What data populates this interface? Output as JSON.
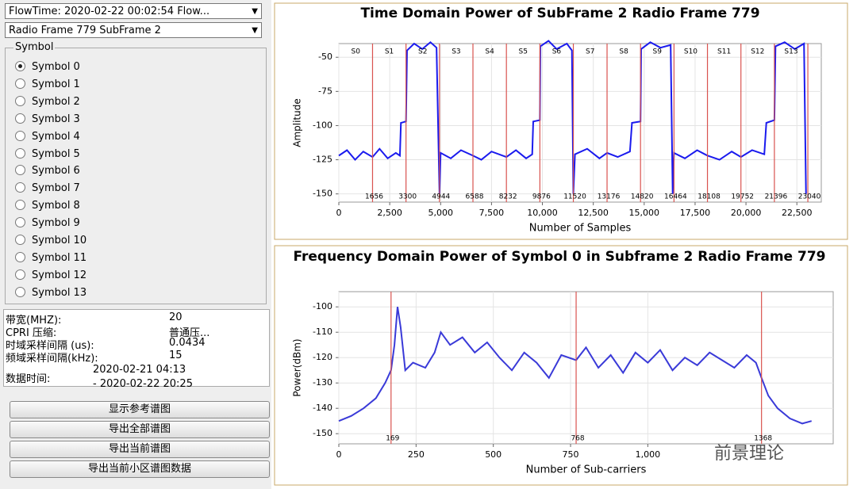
{
  "left_panel": {
    "dropdowns": [
      "FlowTime: 2020-02-22 00:02:54  Flow...",
      "Radio Frame 779 SubFrame 2"
    ],
    "symbol_group": {
      "title": "Symbol",
      "selected_index": 0,
      "options": [
        "Symbol 0",
        "Symbol 1",
        "Symbol 2",
        "Symbol 3",
        "Symbol 4",
        "Symbol 5",
        "Symbol 6",
        "Symbol 7",
        "Symbol 8",
        "Symbol 9",
        "Symbol 10",
        "Symbol 11",
        "Symbol 12",
        "Symbol 13"
      ]
    },
    "info": [
      [
        "带宽(MHZ):",
        "20"
      ],
      [
        "CPRI 压缩:",
        "普通压..."
      ],
      [
        "时域采样间隔 (us):",
        "0.0434"
      ],
      [
        "频域采样间隔(kHz):",
        "15"
      ],
      [
        "数据时间:",
        "2020-02-21 04:13",
        "- 2020-02-22 20:25"
      ]
    ],
    "buttons": [
      "显示参考谱图",
      "导出全部谱图",
      "导出当前谱图",
      "导出当前小区谱图数据"
    ]
  },
  "watermark": "前景理论",
  "chart_data": [
    {
      "type": "line",
      "title": "Time Domain Power of SubFrame 2 Radio Frame 779",
      "x_label": "Number of Samples",
      "y_label": "Amplitude",
      "xlim": [
        0,
        23700
      ],
      "ylim": [
        -156,
        -40
      ],
      "xticks": [
        0,
        {
          "value": 2500,
          "label": "2,500"
        },
        {
          "value": 5000,
          "label": "5,000"
        },
        {
          "value": 7500,
          "label": "7,500"
        },
        {
          "value": 10000,
          "label": "10,000"
        },
        {
          "value": 12500,
          "label": "12,500"
        },
        {
          "value": 15000,
          "label": "15,000"
        },
        {
          "value": 17500,
          "label": "17,500"
        },
        {
          "value": 20000,
          "label": "20,000"
        },
        {
          "value": 22500,
          "label": "22,500"
        }
      ],
      "yticks": [
        -150,
        -125,
        -100,
        -75,
        -50
      ],
      "grid": true,
      "markers": [
        1656,
        3300,
        4944,
        6588,
        8232,
        9876,
        11520,
        13176,
        14820,
        16464,
        18108,
        19752,
        21396,
        23040
      ],
      "marker_color": "#d9534f",
      "segment_labels": [
        "S0",
        "S1",
        "S2",
        "S3",
        "S4",
        "S5",
        "S6",
        "S7",
        "S8",
        "S9",
        "S10",
        "S11",
        "S12",
        "S13"
      ],
      "x": [
        0,
        400,
        800,
        1200,
        1656,
        2000,
        2400,
        2800,
        3000,
        3050,
        3300,
        3350,
        3700,
        4100,
        4500,
        4800,
        4944,
        5000,
        5500,
        6000,
        6588,
        7000,
        7500,
        8232,
        8700,
        9200,
        9500,
        9550,
        9876,
        9900,
        10300,
        10700,
        11200,
        11450,
        11520,
        11600,
        12200,
        12800,
        13176,
        13700,
        14300,
        14400,
        14820,
        14850,
        15300,
        15800,
        16300,
        16400,
        16464,
        17000,
        17600,
        18108,
        18700,
        19300,
        19752,
        20300,
        20900,
        21000,
        21396,
        21450,
        21900,
        22400,
        22850,
        22950
      ],
      "series": [
        {
          "color": "#1a1aee",
          "values": [
            -122,
            -118,
            -125,
            -119,
            -123,
            -117,
            -124,
            -120,
            -122,
            -98,
            -97,
            -45,
            -40,
            -44,
            -39,
            -43,
            -150,
            -120,
            -124,
            -118,
            -122,
            -125,
            -119,
            -123,
            -118,
            -124,
            -121,
            -97,
            -96,
            -42,
            -38,
            -44,
            -40,
            -45,
            -150,
            -121,
            -117,
            -124,
            -120,
            -123,
            -119,
            -98,
            -97,
            -44,
            -39,
            -43,
            -41,
            -150,
            -120,
            -124,
            -118,
            -122,
            -125,
            -119,
            -123,
            -118,
            -121,
            -98,
            -96,
            -42,
            -39,
            -44,
            -40,
            -150
          ]
        }
      ]
    },
    {
      "type": "line",
      "title": "Frequency Domain Power of Symbol 0 in Subframe 2 Radio Frame 779",
      "x_label": "Number of Sub-carriers",
      "y_label": "Power(dBm)",
      "xlim": [
        0,
        1600
      ],
      "ylim": [
        -154,
        -94
      ],
      "xticks": [
        0,
        250,
        500,
        750,
        {
          "value": 1000,
          "label": "1,000"
        }
      ],
      "yticks": [
        -150,
        -140,
        -130,
        -120,
        -110,
        -100
      ],
      "grid": true,
      "markers": [
        169,
        768,
        1368
      ],
      "marker_color": "#d9534f",
      "x": [
        0,
        40,
        80,
        120,
        150,
        169,
        180,
        190,
        200,
        215,
        240,
        280,
        310,
        330,
        360,
        400,
        440,
        480,
        520,
        560,
        600,
        640,
        680,
        720,
        768,
        800,
        840,
        880,
        920,
        960,
        1000,
        1040,
        1080,
        1120,
        1160,
        1200,
        1240,
        1280,
        1320,
        1350,
        1368,
        1390,
        1420,
        1460,
        1500,
        1530
      ],
      "series": [
        {
          "color": "#3a3ad8",
          "values": [
            -145,
            -143,
            -140,
            -136,
            -130,
            -125,
            -115,
            -100,
            -108,
            -125,
            -122,
            -124,
            -118,
            -110,
            -115,
            -112,
            -118,
            -114,
            -120,
            -125,
            -118,
            -122,
            -128,
            -119,
            -121,
            -116,
            -124,
            -119,
            -126,
            -118,
            -122,
            -117,
            -125,
            -120,
            -123,
            -118,
            -121,
            -124,
            -119,
            -122,
            -128,
            -135,
            -140,
            -144,
            -146,
            -145
          ]
        }
      ]
    }
  ]
}
